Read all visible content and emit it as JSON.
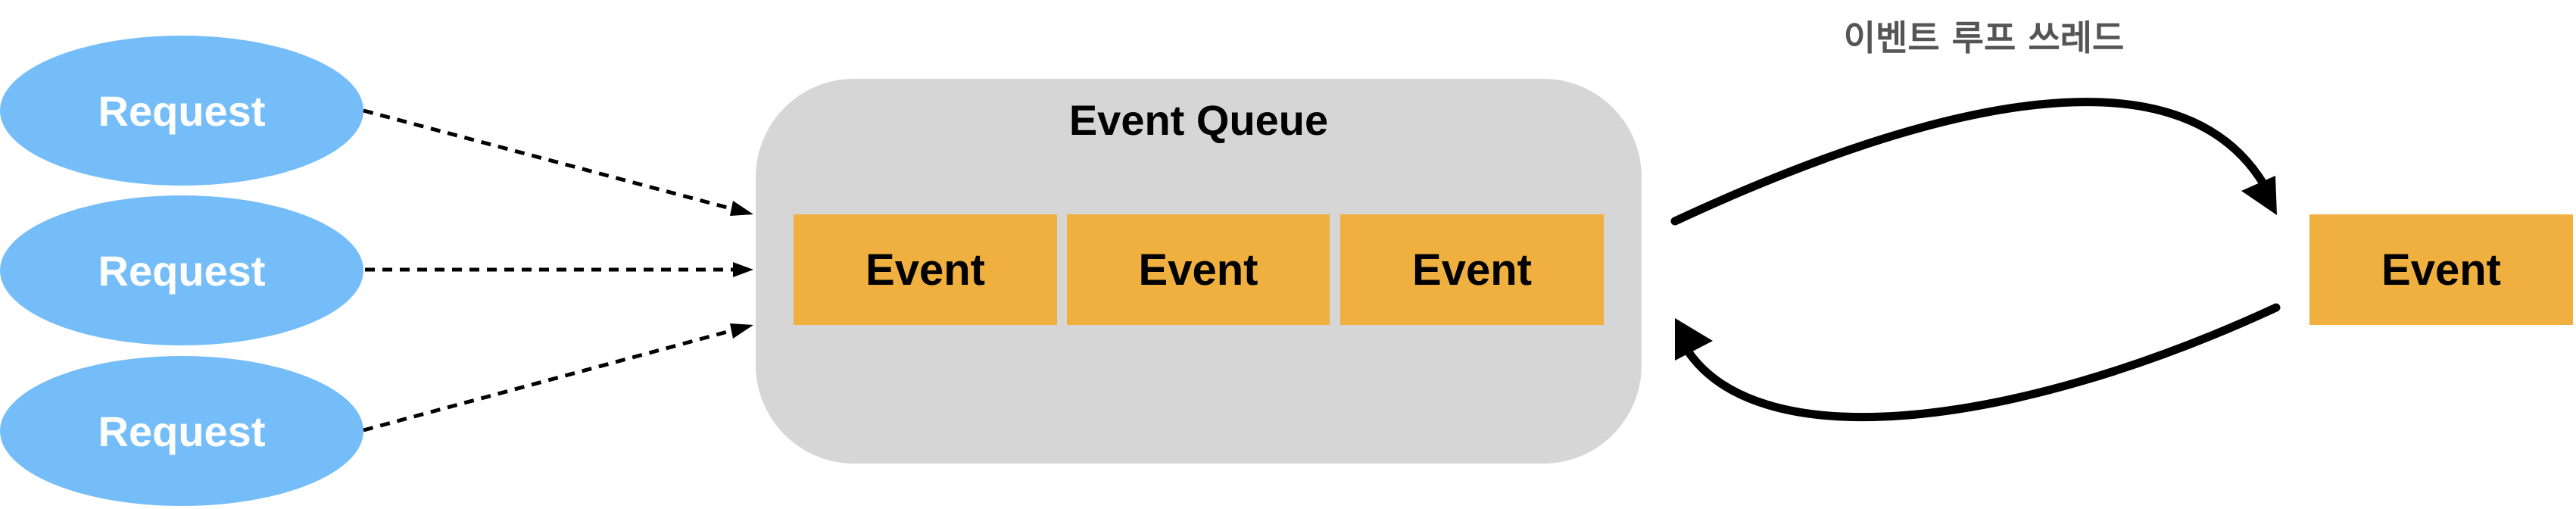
{
  "requests": [
    {
      "label": "Request"
    },
    {
      "label": "Request"
    },
    {
      "label": "Request"
    }
  ],
  "queue": {
    "title": "Event Queue",
    "events": [
      {
        "label": "Event"
      },
      {
        "label": "Event"
      },
      {
        "label": "Event"
      }
    ]
  },
  "event_loop": {
    "label": "이벤트 루프 쓰레드",
    "current_event": "Event"
  },
  "colors": {
    "request_fill": "#75bdf8",
    "queue_fill": "#d6d6d6",
    "event_fill": "#f0b040",
    "arrow": "#000000",
    "thread_label": "#555555"
  }
}
